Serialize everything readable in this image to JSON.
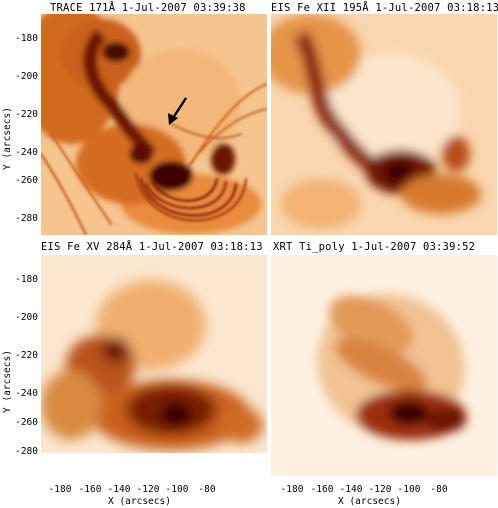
{
  "panels": [
    {
      "title": "TRACE 171Å 1-Jul-2007 03:39:38"
    },
    {
      "title": "EIS Fe XII 195Å 1-Jul-2007 03:18:13"
    },
    {
      "title": "EIS Fe XV 284Å 1-Jul-2007 03:18:13"
    },
    {
      "title": "XRT Ti_poly 1-Jul-2007 03:39:52"
    }
  ],
  "y_axis_label": "Y (arcsecs)",
  "x_axis_label": "X (arcsecs)",
  "y_ticks": [
    "-180",
    "-200",
    "-220",
    "-240",
    "-260",
    "-280"
  ],
  "x_ticks": [
    "-180",
    "-160",
    "-140",
    "-120",
    "-100",
    "-80"
  ],
  "colors": {
    "bright": "#fff6ea",
    "mid": "#e0741e",
    "dark": "#3a0400"
  },
  "annotation_icon": "arrow-icon"
}
